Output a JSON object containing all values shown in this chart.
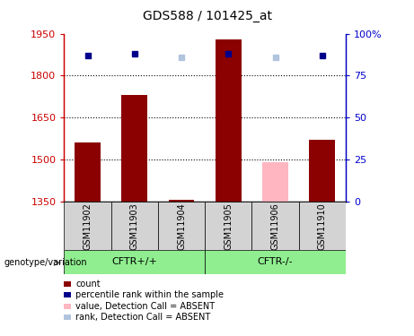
{
  "title": "GDS588 / 101425_at",
  "samples": [
    "GSM11902",
    "GSM11903",
    "GSM11904",
    "GSM11905",
    "GSM11906",
    "GSM11910"
  ],
  "ylim_left": [
    1350,
    1950
  ],
  "ylim_right": [
    0,
    100
  ],
  "yticks_left": [
    1350,
    1500,
    1650,
    1800,
    1950
  ],
  "yticks_right": [
    0,
    25,
    50,
    75,
    100
  ],
  "bar_values": [
    1560,
    1730,
    1358,
    1930,
    1490,
    1570
  ],
  "bar_colors": [
    "#8B0000",
    "#8B0000",
    "#8B0000",
    "#8B0000",
    "#FFB6C1",
    "#8B0000"
  ],
  "bar_absent": [
    false,
    false,
    false,
    false,
    true,
    false
  ],
  "rank_values": [
    87,
    88,
    86,
    88,
    86,
    87
  ],
  "rank_absent": [
    false,
    false,
    true,
    false,
    true,
    false
  ],
  "base_value": 1350,
  "legend_items": [
    {
      "label": "count",
      "color": "#8B0000"
    },
    {
      "label": "percentile rank within the sample",
      "color": "#00008B"
    },
    {
      "label": "value, Detection Call = ABSENT",
      "color": "#FFB6C1"
    },
    {
      "label": "rank, Detection Call = ABSENT",
      "color": "#B0C4DE"
    }
  ],
  "left_axis_color": "#CC0000",
  "right_axis_color": "#0000CC",
  "title_fontsize": 10,
  "tick_fontsize": 8,
  "group1_label": "CFTR+/+",
  "group2_label": "CFTR-/-",
  "group_color": "#90EE90",
  "genotype_label": "genotype/variation"
}
